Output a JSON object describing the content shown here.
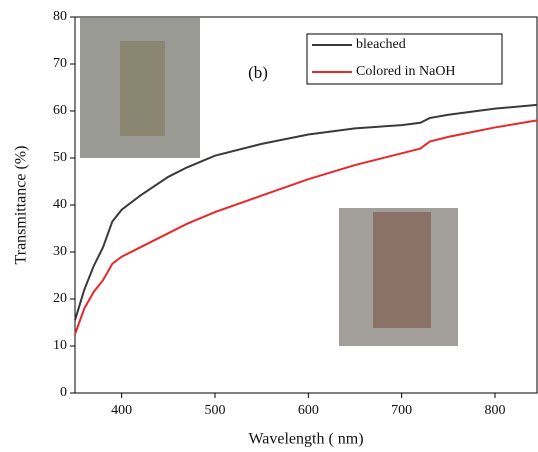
{
  "chart_data": {
    "type": "line",
    "x_label": "Wavelength ( nm)",
    "y_label": "Transmittance (%)",
    "annotation": "(b)",
    "x": [
      350,
      360,
      370,
      380,
      390,
      400,
      420,
      450,
      470,
      500,
      550,
      600,
      650,
      700,
      720,
      730,
      750,
      800,
      845
    ],
    "series": [
      {
        "name": "bleached",
        "color": "#3a3a3a",
        "values": [
          15.5,
          22,
          27,
          31,
          36.5,
          39,
          42,
          46,
          48,
          50.5,
          53,
          55,
          56.3,
          57,
          57.5,
          58.5,
          59.2,
          60.5,
          61.3
        ]
      },
      {
        "name": "Colored in NaOH",
        "color": "#e8282a",
        "values": [
          12.5,
          18,
          21.5,
          24,
          27.5,
          29,
          31,
          34,
          36,
          38.5,
          42,
          45.5,
          48.5,
          51,
          52,
          53.5,
          54.5,
          56.5,
          58
        ]
      }
    ],
    "xlim": [
      350,
      845
    ],
    "ylim": [
      0,
      80
    ],
    "xticks": [
      400,
      500,
      600,
      700,
      800
    ],
    "yticks": [
      0,
      10,
      20,
      30,
      40,
      50,
      60,
      70,
      80
    ]
  }
}
